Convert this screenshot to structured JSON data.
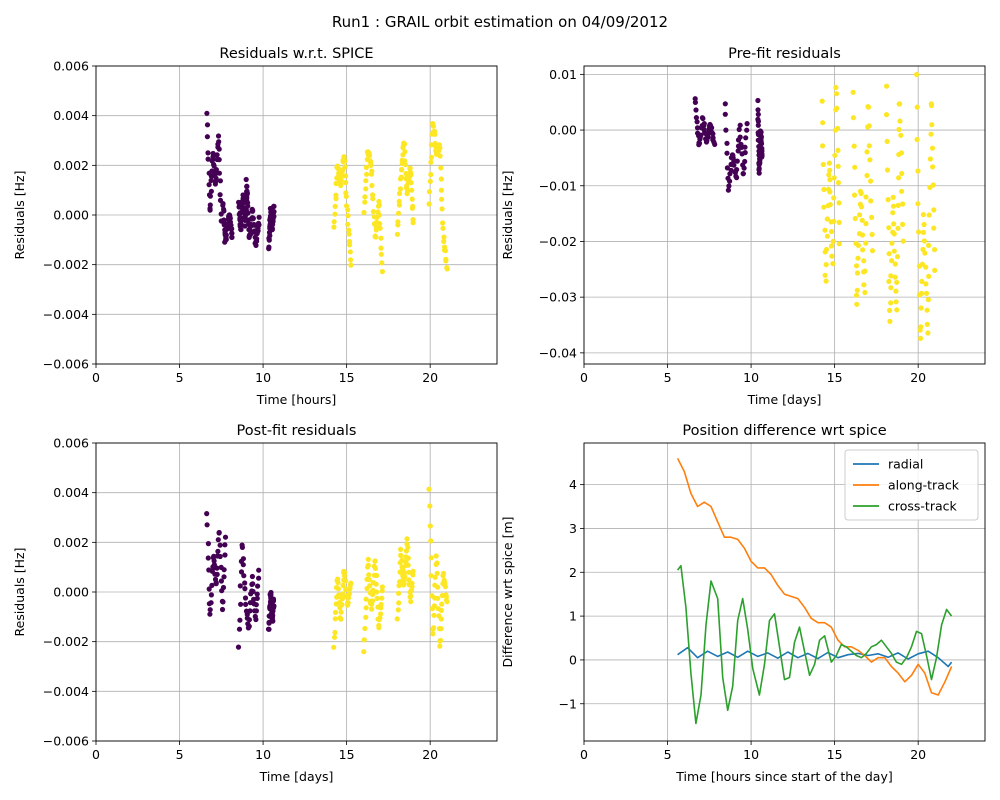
{
  "figure": {
    "suptitle": "Run1 : GRAIL orbit estimation on 04/09/2012"
  },
  "colors": {
    "purple": "#440154",
    "yellow": "#fde725",
    "grid": "#b0b0b0",
    "radial": "#1f77b4",
    "along": "#ff7f0e",
    "cross": "#2ca02c"
  },
  "chart_data": [
    {
      "type": "scatter",
      "title": "Residuals w.r.t. SPICE",
      "xlabel": "Time [hours]",
      "ylabel": "Residuals [Hz]",
      "xlim": [
        0,
        24
      ],
      "ylim": [
        -0.006,
        0.006
      ],
      "xticks": [
        0,
        5,
        10,
        15,
        20
      ],
      "yticks": [
        -0.006,
        -0.004,
        -0.002,
        0.0,
        0.002,
        0.004,
        0.006
      ],
      "ytick_labels": [
        "−0.006",
        "−0.004",
        "−0.002",
        "0.000",
        "0.002",
        "0.004",
        "0.006"
      ],
      "grid": true,
      "series": [
        {
          "color": "purple",
          "passes": [
            {
              "t": [
                6.65,
                7.5
              ],
              "v": [
                0.004,
                0.0,
                0.0025,
                0.0012,
                0.0032,
                -0.0003
              ]
            },
            {
              "t": [
                7.6,
                8.15
              ],
              "v": [
                0.0005,
                -0.0011,
                -0.0004,
                0.0,
                -0.0009
              ]
            },
            {
              "t": [
                8.55,
                9.05
              ],
              "v": [
                0.0006,
                -0.0007,
                0.0008,
                -0.0004,
                0.0012
              ]
            },
            {
              "t": [
                9.0,
                9.75
              ],
              "v": [
                0.0015,
                -0.001,
                0.0003,
                -0.0012,
                -0.0002
              ]
            },
            {
              "t": [
                10.35,
                10.65
              ],
              "v": [
                -0.0013,
                0.0002,
                -0.0006,
                0.0003
              ]
            }
          ]
        },
        {
          "color": "yellow",
          "passes": [
            {
              "t": [
                14.25,
                15.25
              ],
              "v": [
                -0.0006,
                0.002,
                0.0012,
                0.0025,
                0.0,
                -0.002
              ]
            },
            {
              "t": [
                16.05,
                17.15
              ],
              "v": [
                0.0002,
                0.0026,
                0.0018,
                -0.001,
                0.0006,
                -0.0022
              ]
            },
            {
              "t": [
                18.05,
                19.0
              ],
              "v": [
                -0.0007,
                0.0015,
                0.003,
                0.0008,
                0.002,
                -0.0004
              ]
            },
            {
              "t": [
                19.95,
                21.0
              ],
              "v": [
                0.0005,
                0.0038,
                0.0025,
                0.0028,
                -0.0008,
                -0.0022
              ]
            }
          ]
        }
      ]
    },
    {
      "type": "scatter",
      "title": "Pre-fit residuals",
      "xlabel": "Time [days]",
      "ylabel": "Residuals [Hz]",
      "xlim": [
        0,
        24
      ],
      "ylim": [
        -0.042,
        0.0115
      ],
      "xticks": [
        0,
        5,
        10,
        15,
        20
      ],
      "yticks": [
        -0.04,
        -0.03,
        -0.02,
        -0.01,
        0.0,
        0.01
      ],
      "ytick_labels": [
        "−0.04",
        "−0.03",
        "−0.02",
        "−0.01",
        "0.00",
        "0.01"
      ],
      "grid": true,
      "series": [
        {
          "color": "purple",
          "passes": [
            {
              "t": [
                6.65,
                7.8
              ],
              "v": [
                0.0055,
                -0.003,
                0.002,
                -0.002,
                0.001,
                -0.0025
              ]
            },
            {
              "t": [
                8.45,
                9.75
              ],
              "v": [
                0.0045,
                -0.011,
                -0.004,
                -0.009,
                0.001,
                -0.0085,
                0.0015
              ]
            },
            {
              "t": [
                10.4,
                10.65
              ],
              "v": [
                0.005,
                -0.0075,
                0.0,
                -0.005
              ]
            }
          ]
        },
        {
          "color": "yellow",
          "passes": [
            {
              "t": [
                14.25,
                15.3
              ],
              "v": [
                0.005,
                -0.028,
                -0.005,
                -0.025,
                0.009,
                -0.02
              ]
            },
            {
              "t": [
                16.1,
                17.25
              ],
              "v": [
                0.0065,
                -0.032,
                -0.01,
                -0.03,
                0.006,
                -0.022
              ]
            },
            {
              "t": [
                18.1,
                19.1
              ],
              "v": [
                0.0075,
                -0.035,
                -0.012,
                -0.033,
                0.007,
                -0.02
              ]
            },
            {
              "t": [
                19.9,
                21.0
              ],
              "v": [
                0.0095,
                -0.039,
                -0.015,
                -0.037,
                0.0065,
                -0.025
              ]
            }
          ]
        }
      ]
    },
    {
      "type": "scatter",
      "title": "Post-fit residuals",
      "xlabel": "Time [days]",
      "ylabel": "Residuals [Hz]",
      "xlim": [
        0,
        24
      ],
      "ylim": [
        -0.006,
        0.006
      ],
      "xticks": [
        0,
        5,
        10,
        15,
        20
      ],
      "yticks": [
        -0.006,
        -0.004,
        -0.002,
        0.0,
        0.002,
        0.004,
        0.006
      ],
      "ytick_labels": [
        "−0.006",
        "−0.004",
        "−0.002",
        "0.000",
        "0.002",
        "0.004",
        "0.006"
      ],
      "grid": true,
      "series": [
        {
          "color": "purple",
          "passes": [
            {
              "t": [
                6.65,
                7.75
              ],
              "v": [
                0.0032,
                -0.0011,
                0.0016,
                0.0002,
                0.0026,
                -0.0008,
                0.0023
              ]
            },
            {
              "t": [
                8.55,
                9.75
              ],
              "v": [
                -0.0022,
                0.002,
                -0.0004,
                -0.0015,
                0.0006,
                -0.0011,
                0.0008
              ]
            },
            {
              "t": [
                10.35,
                10.65
              ],
              "v": [
                -0.0015,
                0.0,
                -0.0012,
                -0.0003
              ]
            }
          ]
        },
        {
          "color": "yellow",
          "passes": [
            {
              "t": [
                14.25,
                15.25
              ],
              "v": [
                -0.0022,
                0.0007,
                -0.0012,
                0.0009,
                -0.0005,
                0.0003
              ]
            },
            {
              "t": [
                16.05,
                17.15
              ],
              "v": [
                -0.0024,
                0.0013,
                -0.0008,
                0.0014,
                -0.0015,
                0.0002
              ]
            },
            {
              "t": [
                18.05,
                19.0
              ],
              "v": [
                -0.0011,
                0.0017,
                0.0002,
                0.0021,
                -0.0004,
                0.0009
              ]
            },
            {
              "t": [
                19.95,
                21.0
              ],
              "v": [
                0.0041,
                -0.0019,
                0.0015,
                -0.0023,
                0.0008,
                -0.0005
              ]
            }
          ]
        }
      ]
    },
    {
      "type": "line",
      "title": "Position difference wrt spice",
      "xlabel": "Time [hours since start of the day]",
      "ylabel": "Difference wrt spice [m]",
      "xlim": [
        0,
        24
      ],
      "ylim": [
        -1.85,
        4.95
      ],
      "xticks": [
        0,
        5,
        10,
        15,
        20
      ],
      "yticks": [
        -1,
        0,
        1,
        2,
        3,
        4
      ],
      "ytick_labels": [
        "−1",
        "0",
        "1",
        "2",
        "3",
        "4"
      ],
      "grid": true,
      "legend": "top-right",
      "series": [
        {
          "name": "radial",
          "color": "radial",
          "x": [
            5.6,
            6.2,
            6.8,
            7.4,
            8.0,
            8.6,
            9.2,
            9.8,
            10.4,
            11.0,
            11.6,
            12.2,
            12.8,
            13.4,
            14.0,
            14.6,
            15.2,
            15.8,
            16.4,
            17.0,
            17.6,
            18.2,
            18.8,
            19.4,
            20.0,
            20.6,
            21.2,
            21.8,
            22.0
          ],
          "y": [
            0.12,
            0.28,
            0.05,
            0.2,
            0.08,
            0.18,
            0.06,
            0.2,
            0.08,
            0.16,
            0.04,
            0.18,
            0.05,
            0.15,
            0.03,
            0.17,
            0.05,
            0.12,
            0.15,
            0.1,
            0.14,
            0.06,
            0.16,
            0.02,
            0.14,
            0.2,
            0.05,
            -0.15,
            -0.05
          ]
        },
        {
          "name": "along-track",
          "color": "along",
          "x": [
            5.6,
            6.0,
            6.4,
            6.8,
            7.2,
            7.6,
            8.0,
            8.4,
            8.8,
            9.2,
            9.6,
            10.0,
            10.4,
            10.8,
            11.2,
            11.6,
            12.0,
            12.4,
            12.8,
            13.2,
            13.6,
            14.0,
            14.4,
            14.8,
            15.2,
            15.6,
            16.0,
            16.4,
            16.8,
            17.2,
            17.6,
            18.0,
            18.4,
            18.8,
            19.2,
            19.6,
            20.0,
            20.4,
            20.8,
            21.2,
            21.6,
            22.0
          ],
          "y": [
            4.6,
            4.3,
            3.8,
            3.5,
            3.6,
            3.5,
            3.15,
            2.8,
            2.8,
            2.75,
            2.55,
            2.25,
            2.1,
            2.1,
            1.95,
            1.7,
            1.5,
            1.45,
            1.4,
            1.2,
            0.95,
            0.85,
            0.85,
            0.75,
            0.45,
            0.3,
            0.3,
            0.22,
            0.1,
            -0.05,
            0.05,
            0.05,
            -0.15,
            -0.3,
            -0.5,
            -0.35,
            -0.1,
            -0.3,
            -0.75,
            -0.8,
            -0.5,
            -0.15
          ]
        },
        {
          "name": "cross-track",
          "color": "cross",
          "x": [
            5.6,
            5.8,
            6.1,
            6.4,
            6.7,
            7.0,
            7.3,
            7.6,
            8.0,
            8.3,
            8.6,
            8.9,
            9.2,
            9.5,
            9.8,
            10.1,
            10.5,
            10.8,
            11.1,
            11.4,
            11.7,
            12.0,
            12.3,
            12.6,
            12.9,
            13.2,
            13.5,
            13.8,
            14.1,
            14.4,
            14.8,
            15.1,
            15.4,
            15.7,
            16.0,
            16.3,
            16.6,
            16.9,
            17.2,
            17.5,
            17.8,
            18.1,
            18.4,
            18.7,
            19.0,
            19.3,
            19.6,
            19.9,
            20.2,
            20.5,
            20.8,
            21.1,
            21.4,
            21.7,
            22.0
          ],
          "y": [
            2.05,
            2.15,
            1.2,
            -0.3,
            -1.45,
            -0.8,
            0.8,
            1.8,
            1.4,
            -0.4,
            -1.15,
            -0.6,
            0.9,
            1.4,
            0.7,
            -0.2,
            -0.8,
            -0.1,
            0.9,
            1.05,
            0.3,
            -0.45,
            -0.4,
            0.4,
            0.75,
            0.2,
            -0.35,
            -0.1,
            0.45,
            0.55,
            -0.05,
            0.1,
            0.35,
            0.3,
            0.2,
            0.1,
            0.05,
            0.15,
            0.3,
            0.35,
            0.45,
            0.3,
            0.15,
            -0.05,
            -0.1,
            0.05,
            0.3,
            0.65,
            0.6,
            0.1,
            -0.45,
            0.05,
            0.8,
            1.15,
            1.0
          ]
        }
      ]
    }
  ]
}
